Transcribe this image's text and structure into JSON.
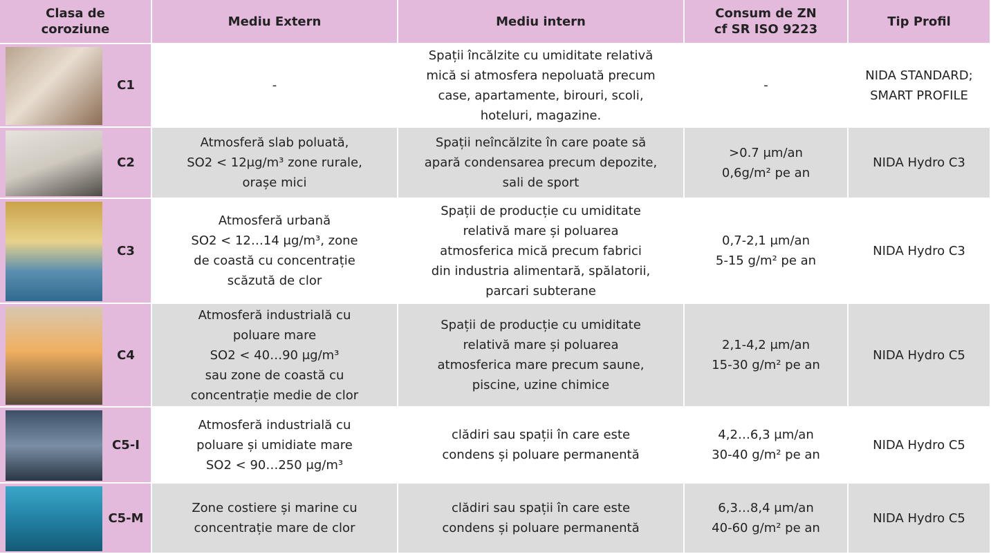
{
  "table": {
    "headers": [
      [
        "Clasa de",
        "coroziune"
      ],
      [
        "Mediu Extern"
      ],
      [
        "Mediu intern"
      ],
      [
        "Consum de ZN",
        "cf SR ISO 9223"
      ],
      [
        "Tip Profil"
      ]
    ],
    "rows": [
      {
        "class": "C1",
        "cells": [
          [
            "-"
          ],
          [
            "Spații încălzite cu umiditate relativă",
            "mică si atmosfera nepoluată precum",
            "case, apartamente, birouri, scoli,",
            "hoteluri, magazine."
          ],
          [
            "-"
          ],
          [
            "NIDA STANDARD;",
            "SMART PROFILE"
          ]
        ]
      },
      {
        "class": "C2",
        "cells": [
          [
            "Atmosferă slab poluată,",
            "SO2 < 12μg/m³ zone rurale,",
            "orașe mici"
          ],
          [
            "Spații neîncălzite în care poate să",
            "apară condensarea precum depozite,",
            "sali de sport"
          ],
          [
            ">0.7 μm/an",
            "0,6g/m² pe an"
          ],
          [
            "NIDA Hydro C3"
          ]
        ]
      },
      {
        "class": "C3",
        "cells": [
          [
            "Atmosferă urbană",
            "SO2 < 12…14 μg/m³, zone",
            "de coastă cu concentrație",
            "scăzută de clor"
          ],
          [
            "Spații de producție cu umiditate",
            "relativă mare și poluarea",
            "atmosferica mică precum fabrici",
            "din industria alimentară, spălatorii,",
            "parcari subterane"
          ],
          [
            "0,7-2,1 μm/an",
            "5-15 g/m² pe an"
          ],
          [
            "NIDA Hydro C3"
          ]
        ]
      },
      {
        "class": "C4",
        "cells": [
          [
            "Atmosferă industrială cu",
            "poluare mare",
            "SO2 < 40…90 μg/m³",
            "sau zone de coastă cu",
            "concentrație medie de clor"
          ],
          [
            "Spații de producție cu umiditate",
            "relativă mare și poluarea",
            "atmosferica mare precum saune,",
            "piscine, uzine chimice"
          ],
          [
            "2,1-4,2 μm/an",
            "15-30 g/m² pe an"
          ],
          [
            "NIDA Hydro C5"
          ]
        ]
      },
      {
        "class": "C5-I",
        "cells": [
          [
            "Atmosferă industrială cu",
            "poluare și umidiate mare",
            "SO2 < 90…250 μg/m³"
          ],
          [
            "clădiri sau spații în care este",
            "condens și poluare permanentă"
          ],
          [
            "4,2…6,3 μm/an",
            "30-40 g/m² pe an"
          ],
          [
            "NIDA Hydro C5"
          ]
        ]
      },
      {
        "class": "C5-M",
        "cells": [
          [
            "Zone costiere și marine cu",
            "concentrație mare de clor"
          ],
          [
            "clădiri sau spații în care este",
            "condens și poluare permanentă"
          ],
          [
            "6,3…8,4 μm/an",
            "40-60 g/m² pe an"
          ],
          [
            "NIDA Hydro C5"
          ]
        ]
      }
    ]
  }
}
